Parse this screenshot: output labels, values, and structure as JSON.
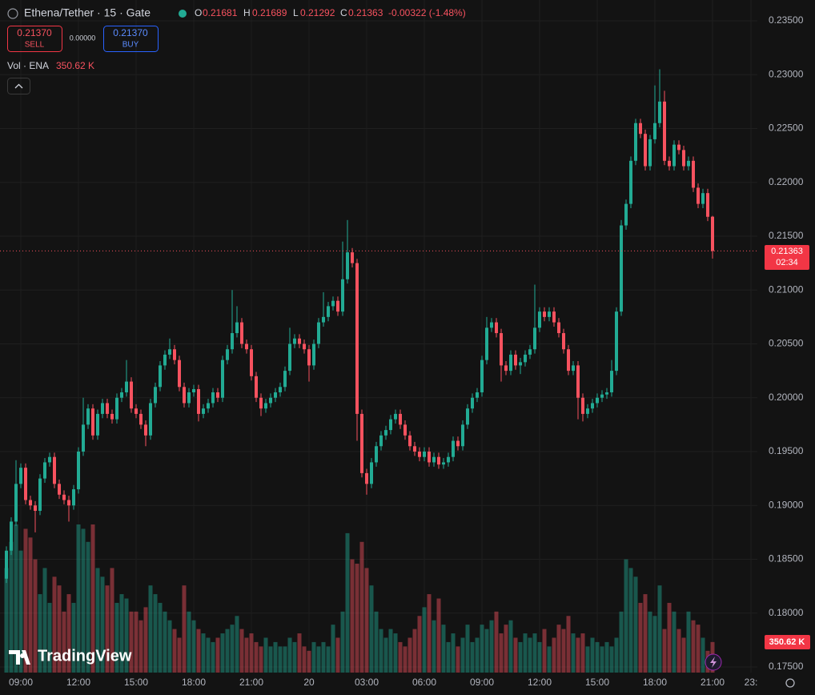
{
  "header": {
    "symbol": "Ethena/Tether · 15 · Gate",
    "o_label": "O",
    "h_label": "H",
    "l_label": "L",
    "c_label": "C",
    "change": "-0.00322 (-1.48%)",
    "sell_price": "0.21370",
    "sell": "SELL",
    "spread": "0.00000",
    "buy_price": "0.21370",
    "buy": "BUY",
    "vol_title": "Vol · ENA",
    "countdown": "02:34",
    "logo": "TradingView"
  },
  "chart_data": {
    "type": "candlestick",
    "up_color": "#22ab94",
    "down_color": "#f7525f",
    "grid": true,
    "volume_label": "350.62 K",
    "ylim": [
      0.17448,
      0.23693
    ],
    "yticks": [
      {
        "value": 0.175,
        "label": "0.17500"
      },
      {
        "value": 0.18,
        "label": "0.18000"
      },
      {
        "value": 0.185,
        "label": "0.18500"
      },
      {
        "value": 0.19,
        "label": "0.19000"
      },
      {
        "value": 0.195,
        "label": "0.19500"
      },
      {
        "value": 0.2,
        "label": "0.20000"
      },
      {
        "value": 0.205,
        "label": "0.20500"
      },
      {
        "value": 0.21,
        "label": "0.21000"
      },
      {
        "value": 0.215,
        "label": "0.21500"
      },
      {
        "value": 0.22,
        "label": "0.22000"
      },
      {
        "value": 0.225,
        "label": "0.22500"
      },
      {
        "value": 0.23,
        "label": "0.23000"
      },
      {
        "value": 0.235,
        "label": "0.23500"
      }
    ],
    "xlim": [
      7.9167,
      47.3333
    ],
    "xticks": [
      {
        "value": 9,
        "label": "09:00"
      },
      {
        "value": 12,
        "label": "12:00"
      },
      {
        "value": 15,
        "label": "15:00"
      },
      {
        "value": 18,
        "label": "18:00"
      },
      {
        "value": 21,
        "label": "21:00"
      },
      {
        "value": 24,
        "label": "20"
      },
      {
        "value": 27,
        "label": "03:00"
      },
      {
        "value": 30,
        "label": "06:00"
      },
      {
        "value": 33,
        "label": "09:00"
      },
      {
        "value": 36,
        "label": "12:00"
      },
      {
        "value": 39,
        "label": "15:00"
      },
      {
        "value": 42,
        "label": "18:00"
      },
      {
        "value": 45,
        "label": "21:00"
      },
      {
        "value": 47,
        "label": "23:"
      }
    ],
    "x": [
      8.25,
      8.5,
      8.75,
      9,
      9.25,
      9.5,
      9.75,
      10,
      10.25,
      10.5,
      10.75,
      11,
      11.25,
      11.5,
      11.75,
      12,
      12.25,
      12.5,
      12.75,
      13,
      13.25,
      13.5,
      13.75,
      14,
      14.25,
      14.5,
      14.75,
      15,
      15.25,
      15.5,
      15.75,
      16,
      16.25,
      16.5,
      16.75,
      17,
      17.25,
      17.5,
      17.75,
      18,
      18.25,
      18.5,
      18.75,
      19,
      19.25,
      19.5,
      19.75,
      20,
      20.25,
      20.5,
      20.75,
      21,
      21.25,
      21.5,
      21.75,
      22,
      22.25,
      22.5,
      22.75,
      23,
      23.25,
      23.5,
      23.75,
      24,
      24.25,
      24.5,
      24.75,
      25,
      25.25,
      25.5,
      25.75,
      26,
      26.25,
      26.5,
      26.75,
      27,
      27.25,
      27.5,
      27.75,
      28,
      28.25,
      28.5,
      28.75,
      29,
      29.25,
      29.5,
      29.75,
      30,
      30.25,
      30.5,
      30.75,
      31,
      31.25,
      31.5,
      31.75,
      32,
      32.25,
      32.5,
      32.75,
      33,
      33.25,
      33.5,
      33.75,
      34,
      34.25,
      34.5,
      34.75,
      35,
      35.25,
      35.5,
      35.75,
      36,
      36.25,
      36.5,
      36.75,
      37,
      37.25,
      37.5,
      37.75,
      38,
      38.25,
      38.5,
      38.75,
      39,
      39.25,
      39.5,
      39.75,
      40,
      40.25,
      40.5,
      40.75,
      41,
      41.25,
      41.5,
      41.75,
      42,
      42.25,
      42.5,
      42.75,
      43,
      43.25,
      43.5,
      43.75,
      44,
      44.25,
      44.5,
      44.75,
      45
    ],
    "candles": [
      [
        0.1832,
        0.1862,
        0.1828,
        0.1858
      ],
      [
        0.1858,
        0.1889,
        0.1854,
        0.1885
      ],
      [
        0.1885,
        0.1942,
        0.1881,
        0.192
      ],
      [
        0.192,
        0.1939,
        0.1916,
        0.1935
      ],
      [
        0.1935,
        0.1939,
        0.1901,
        0.1905
      ],
      [
        0.1905,
        0.1909,
        0.1896,
        0.19
      ],
      [
        0.19,
        0.1904,
        0.1875,
        0.1895
      ],
      [
        0.1895,
        0.1929,
        0.1891,
        0.1925
      ],
      [
        0.1925,
        0.1944,
        0.1921,
        0.194
      ],
      [
        0.194,
        0.1949,
        0.1936,
        0.1945
      ],
      [
        0.1945,
        0.1949,
        0.1916,
        0.192
      ],
      [
        0.192,
        0.1924,
        0.1906,
        0.191
      ],
      [
        0.191,
        0.1914,
        0.1901,
        0.1905
      ],
      [
        0.1905,
        0.1909,
        0.1885,
        0.19
      ],
      [
        0.19,
        0.1919,
        0.1896,
        0.1915
      ],
      [
        0.1915,
        0.1954,
        0.1911,
        0.195
      ],
      [
        0.195,
        0.2,
        0.1946,
        0.1975
      ],
      [
        0.1975,
        0.1994,
        0.1971,
        0.199
      ],
      [
        0.199,
        0.1994,
        0.1961,
        0.1965
      ],
      [
        0.1965,
        0.1989,
        0.1961,
        0.1985
      ],
      [
        0.1985,
        0.1999,
        0.1981,
        0.1995
      ],
      [
        0.1995,
        0.1999,
        0.1981,
        0.1985
      ],
      [
        0.1985,
        0.1989,
        0.1976,
        0.198
      ],
      [
        0.198,
        0.2004,
        0.1976,
        0.2
      ],
      [
        0.2,
        0.2009,
        0.1996,
        0.2005
      ],
      [
        0.2005,
        0.2035,
        0.2001,
        0.2015
      ],
      [
        0.2015,
        0.2019,
        0.1986,
        0.199
      ],
      [
        0.199,
        0.1994,
        0.1981,
        0.1985
      ],
      [
        0.1985,
        0.1989,
        0.1971,
        0.1975
      ],
      [
        0.1975,
        0.1979,
        0.1955,
        0.1965
      ],
      [
        0.1965,
        0.1999,
        0.1961,
        0.1995
      ],
      [
        0.1995,
        0.2014,
        0.1991,
        0.201
      ],
      [
        0.201,
        0.2034,
        0.2006,
        0.203
      ],
      [
        0.203,
        0.2044,
        0.2026,
        0.204
      ],
      [
        0.204,
        0.2055,
        0.2036,
        0.2045
      ],
      [
        0.2045,
        0.2049,
        0.2031,
        0.2035
      ],
      [
        0.2035,
        0.2039,
        0.2006,
        0.201
      ],
      [
        0.201,
        0.2014,
        0.1991,
        0.1995
      ],
      [
        0.1995,
        0.2009,
        0.1991,
        0.2005
      ],
      [
        0.2005,
        0.2012,
        0.2001,
        0.2008
      ],
      [
        0.2008,
        0.2012,
        0.1978,
        0.1985
      ],
      [
        0.1985,
        0.1994,
        0.1981,
        0.199
      ],
      [
        0.199,
        0.1999,
        0.1986,
        0.1995
      ],
      [
        0.1995,
        0.2009,
        0.1991,
        0.2005
      ],
      [
        0.2005,
        0.2009,
        0.1996,
        0.2
      ],
      [
        0.2,
        0.2039,
        0.1996,
        0.2035
      ],
      [
        0.2035,
        0.2049,
        0.2031,
        0.2045
      ],
      [
        0.2045,
        0.21,
        0.2041,
        0.206
      ],
      [
        0.206,
        0.2085,
        0.2056,
        0.207
      ],
      [
        0.207,
        0.2074,
        0.2046,
        0.205
      ],
      [
        0.205,
        0.2054,
        0.2041,
        0.2045
      ],
      [
        0.2045,
        0.2049,
        0.2016,
        0.202
      ],
      [
        0.202,
        0.2024,
        0.1996,
        0.2
      ],
      [
        0.2,
        0.2004,
        0.1983,
        0.199
      ],
      [
        0.199,
        0.1999,
        0.1986,
        0.1995
      ],
      [
        0.1995,
        0.2004,
        0.1991,
        0.2
      ],
      [
        0.2,
        0.2009,
        0.1996,
        0.2005
      ],
      [
        0.2005,
        0.2014,
        0.2001,
        0.201
      ],
      [
        0.201,
        0.2029,
        0.2006,
        0.2025
      ],
      [
        0.2025,
        0.2065,
        0.2021,
        0.205
      ],
      [
        0.205,
        0.2059,
        0.2046,
        0.2055
      ],
      [
        0.2055,
        0.2059,
        0.2046,
        0.205
      ],
      [
        0.205,
        0.2054,
        0.2041,
        0.2045
      ],
      [
        0.2045,
        0.2049,
        0.2015,
        0.203
      ],
      [
        0.203,
        0.2054,
        0.2026,
        0.205
      ],
      [
        0.205,
        0.2074,
        0.2046,
        0.207
      ],
      [
        0.207,
        0.2098,
        0.2066,
        0.2075
      ],
      [
        0.2075,
        0.2089,
        0.2071,
        0.2085
      ],
      [
        0.2085,
        0.2094,
        0.2081,
        0.209
      ],
      [
        0.209,
        0.2094,
        0.2076,
        0.208
      ],
      [
        0.208,
        0.2145,
        0.2076,
        0.211
      ],
      [
        0.211,
        0.2165,
        0.2106,
        0.2135
      ],
      [
        0.2135,
        0.2139,
        0.2121,
        0.2125
      ],
      [
        0.2125,
        0.2129,
        0.196,
        0.1985
      ],
      [
        0.1985,
        0.1989,
        0.1926,
        0.193
      ],
      [
        0.193,
        0.1934,
        0.191,
        0.192
      ],
      [
        0.192,
        0.1944,
        0.1916,
        0.194
      ],
      [
        0.194,
        0.1959,
        0.1936,
        0.1955
      ],
      [
        0.1955,
        0.1969,
        0.1951,
        0.1965
      ],
      [
        0.1965,
        0.1974,
        0.1961,
        0.197
      ],
      [
        0.197,
        0.1984,
        0.1966,
        0.198
      ],
      [
        0.198,
        0.1989,
        0.1976,
        0.1985
      ],
      [
        0.1985,
        0.1989,
        0.1971,
        0.1975
      ],
      [
        0.1975,
        0.1979,
        0.1961,
        0.1965
      ],
      [
        0.1965,
        0.1969,
        0.1951,
        0.1955
      ],
      [
        0.1955,
        0.1959,
        0.1946,
        0.195
      ],
      [
        0.195,
        0.1954,
        0.1941,
        0.1945
      ],
      [
        0.1945,
        0.1954,
        0.1941,
        0.195
      ],
      [
        0.195,
        0.1954,
        0.1936,
        0.194
      ],
      [
        0.194,
        0.1949,
        0.1936,
        0.1945
      ],
      [
        0.1945,
        0.1949,
        0.1934,
        0.1938
      ],
      [
        0.1938,
        0.1944,
        0.1934,
        0.194
      ],
      [
        0.194,
        0.1949,
        0.1936,
        0.1945
      ],
      [
        0.1945,
        0.1964,
        0.1941,
        0.196
      ],
      [
        0.196,
        0.1964,
        0.1951,
        0.1955
      ],
      [
        0.1955,
        0.1979,
        0.1951,
        0.1975
      ],
      [
        0.1975,
        0.1994,
        0.1971,
        0.199
      ],
      [
        0.199,
        0.2004,
        0.1986,
        0.2
      ],
      [
        0.2,
        0.2009,
        0.1996,
        0.2005
      ],
      [
        0.2005,
        0.2039,
        0.2001,
        0.2035
      ],
      [
        0.2035,
        0.2075,
        0.2031,
        0.2065
      ],
      [
        0.2065,
        0.2074,
        0.2061,
        0.207
      ],
      [
        0.207,
        0.2074,
        0.2056,
        0.206
      ],
      [
        0.206,
        0.2064,
        0.2015,
        0.203
      ],
      [
        0.203,
        0.2034,
        0.2021,
        0.2025
      ],
      [
        0.2025,
        0.2044,
        0.2021,
        0.204
      ],
      [
        0.204,
        0.2044,
        0.2026,
        0.203
      ],
      [
        0.203,
        0.2037,
        0.2022,
        0.2033
      ],
      [
        0.2033,
        0.2044,
        0.2029,
        0.204
      ],
      [
        0.204,
        0.2049,
        0.2036,
        0.2045
      ],
      [
        0.2045,
        0.2105,
        0.2041,
        0.2065
      ],
      [
        0.2065,
        0.2084,
        0.2061,
        0.208
      ],
      [
        0.208,
        0.2084,
        0.2071,
        0.2075
      ],
      [
        0.2075,
        0.2084,
        0.2071,
        0.208
      ],
      [
        0.208,
        0.2084,
        0.2066,
        0.207
      ],
      [
        0.207,
        0.2074,
        0.2056,
        0.206
      ],
      [
        0.206,
        0.2064,
        0.2041,
        0.2045
      ],
      [
        0.2045,
        0.2049,
        0.2021,
        0.2025
      ],
      [
        0.2025,
        0.2034,
        0.2021,
        0.203
      ],
      [
        0.203,
        0.2034,
        0.198,
        0.2
      ],
      [
        0.2,
        0.2004,
        0.1978,
        0.1985
      ],
      [
        0.1985,
        0.1994,
        0.1981,
        0.199
      ],
      [
        0.199,
        0.1999,
        0.1986,
        0.1995
      ],
      [
        0.1995,
        0.2004,
        0.1991,
        0.2
      ],
      [
        0.2,
        0.2007,
        0.1996,
        0.2003
      ],
      [
        0.2003,
        0.2009,
        0.1999,
        0.2005
      ],
      [
        0.2005,
        0.2035,
        0.2001,
        0.2025
      ],
      [
        0.2025,
        0.2084,
        0.2021,
        0.208
      ],
      [
        0.208,
        0.2165,
        0.2076,
        0.216
      ],
      [
        0.216,
        0.2184,
        0.2156,
        0.218
      ],
      [
        0.218,
        0.2224,
        0.2176,
        0.222
      ],
      [
        0.222,
        0.2259,
        0.2216,
        0.2255
      ],
      [
        0.2255,
        0.2259,
        0.2241,
        0.2245
      ],
      [
        0.2245,
        0.2249,
        0.2211,
        0.2215
      ],
      [
        0.2215,
        0.2244,
        0.2211,
        0.224
      ],
      [
        0.224,
        0.229,
        0.2236,
        0.2255
      ],
      [
        0.2255,
        0.2305,
        0.2251,
        0.2275
      ],
      [
        0.2275,
        0.2285,
        0.2216,
        0.222
      ],
      [
        0.222,
        0.2224,
        0.2211,
        0.2215
      ],
      [
        0.2215,
        0.2239,
        0.2211,
        0.2235
      ],
      [
        0.2235,
        0.2239,
        0.2226,
        0.223
      ],
      [
        0.223,
        0.2234,
        0.2211,
        0.2215
      ],
      [
        0.2215,
        0.2224,
        0.2211,
        0.222
      ],
      [
        0.222,
        0.2224,
        0.2191,
        0.2195
      ],
      [
        0.2195,
        0.2199,
        0.2176,
        0.218
      ],
      [
        0.218,
        0.2194,
        0.2176,
        0.219
      ],
      [
        0.219,
        0.2194,
        0.2164,
        0.2168
      ],
      [
        0.21681,
        0.21689,
        0.21292,
        0.21363
      ]
    ],
    "volume": [
      1200,
      1500,
      1700,
      1400,
      1650,
      1550,
      1300,
      900,
      1200,
      800,
      1100,
      1000,
      700,
      900,
      800,
      1700,
      1650,
      1500,
      1700,
      1200,
      1100,
      1000,
      1200,
      800,
      900,
      850,
      700,
      700,
      600,
      750,
      1000,
      900,
      800,
      700,
      600,
      500,
      400,
      1000,
      700,
      600,
      500,
      450,
      400,
      350,
      400,
      450,
      500,
      550,
      650,
      500,
      400,
      450,
      350,
      300,
      400,
      300,
      350,
      300,
      300,
      400,
      350,
      450,
      300,
      250,
      350,
      300,
      350,
      300,
      550,
      400,
      700,
      1600,
      1300,
      1250,
      1500,
      1200,
      1000,
      700,
      500,
      400,
      500,
      450,
      350,
      300,
      400,
      500,
      650,
      750,
      900,
      600,
      850,
      550,
      350,
      450,
      300,
      400,
      550,
      350,
      400,
      550,
      500,
      600,
      700,
      450,
      550,
      600,
      400,
      350,
      450,
      400,
      450,
      350,
      500,
      300,
      400,
      550,
      500,
      650,
      450,
      400,
      450,
      300,
      400,
      350,
      300,
      350,
      300,
      400,
      700,
      1300,
      1200,
      1100,
      800,
      900,
      700,
      650,
      1000,
      500,
      800,
      700,
      500,
      400,
      700,
      600,
      550,
      400,
      250,
      350.62
    ]
  }
}
